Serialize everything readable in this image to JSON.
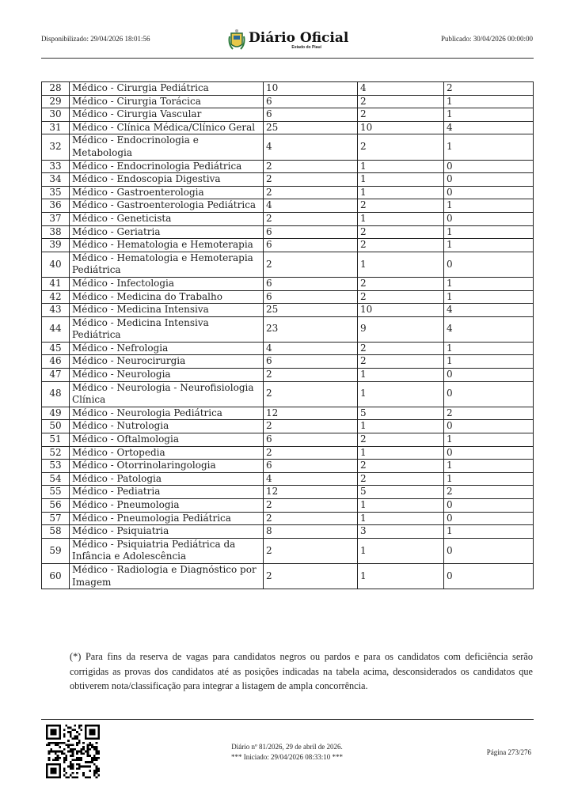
{
  "header": {
    "available": "Disponibilizado: 29/04/2026 18:01:56",
    "logo_title": "Diário Oficial",
    "logo_subtitle": "Estado do Piauí",
    "published": "Publicado: 30/04/2026 00:00:00"
  },
  "table": {
    "rows": [
      [
        "28",
        "Médico - Cirurgia Pediátrica",
        "10",
        "4",
        "2"
      ],
      [
        "29",
        "Médico - Cirurgia Torácica",
        "6",
        "2",
        "1"
      ],
      [
        "30",
        "Médico - Cirurgia Vascular",
        "6",
        "2",
        "1"
      ],
      [
        "31",
        "Médico - Clínica Médica/Clínico Geral",
        "25",
        "10",
        "4"
      ],
      [
        "32",
        "Médico - Endocrinologia e Metabologia",
        "4",
        "2",
        "1"
      ],
      [
        "33",
        "Médico - Endocrinologia Pediátrica",
        "2",
        "1",
        "0"
      ],
      [
        "34",
        "Médico - Endoscopia Digestiva",
        "2",
        "1",
        "0"
      ],
      [
        "35",
        "Médico - Gastroenterologia",
        "2",
        "1",
        "0"
      ],
      [
        "36",
        "Médico - Gastroenterologia Pediátrica",
        "4",
        "2",
        "1"
      ],
      [
        "37",
        "Médico - Geneticista",
        "2",
        "1",
        "0"
      ],
      [
        "38",
        "Médico - Geriatria",
        "6",
        "2",
        "1"
      ],
      [
        "39",
        "Médico - Hematologia e Hemoterapia",
        "6",
        "2",
        "1"
      ],
      [
        "40",
        "Médico - Hematologia e Hemoterapia Pediátrica",
        "2",
        "1",
        "0"
      ],
      [
        "41",
        "Médico - Infectologia",
        "6",
        "2",
        "1"
      ],
      [
        "42",
        "Médico - Medicina do Trabalho",
        "6",
        "2",
        "1"
      ],
      [
        "43",
        "Médico - Medicina Intensiva",
        "25",
        "10",
        "4"
      ],
      [
        "44",
        "Médico - Medicina Intensiva Pediátrica",
        "23",
        "9",
        "4"
      ],
      [
        "45",
        "Médico - Nefrologia",
        "4",
        "2",
        "1"
      ],
      [
        "46",
        "Médico - Neurocirurgia",
        "6",
        "2",
        "1"
      ],
      [
        "47",
        "Médico - Neurologia",
        "2",
        "1",
        "0"
      ],
      [
        "48",
        "Médico - Neurologia - Neurofisiologia Clínica",
        "2",
        "1",
        "0"
      ],
      [
        "49",
        "Médico - Neurologia Pediátrica",
        "12",
        "5",
        "2"
      ],
      [
        "50",
        "Médico - Nutrologia",
        "2",
        "1",
        "0"
      ],
      [
        "51",
        "Médico - Oftalmologia",
        "6",
        "2",
        "1"
      ],
      [
        "52",
        "Médico - Ortopedia",
        "2",
        "1",
        "0"
      ],
      [
        "53",
        "Médico - Otorrinolaringologia",
        "6",
        "2",
        "1"
      ],
      [
        "54",
        "Médico - Patologia",
        "4",
        "2",
        "1"
      ],
      [
        "55",
        "Médico - Pediatria",
        "12",
        "5",
        "2"
      ],
      [
        "56",
        "Médico - Pneumologia",
        "2",
        "1",
        "0"
      ],
      [
        "57",
        "Médico - Pneumologia Pediátrica",
        "2",
        "1",
        "0"
      ],
      [
        "58",
        "Médico - Psiquiatria",
        "8",
        "3",
        "1"
      ],
      [
        "59",
        "Médico - Psiquiatria Pediátrica da Infância e Adolescência",
        "2",
        "1",
        "0"
      ],
      [
        "60",
        "Médico - Radiologia e Diagnóstico por Imagem",
        "2",
        "1",
        "0"
      ]
    ]
  },
  "note": "(*) Para fins da reserva de vagas para candidatos negros ou pardos e para os candidatos com deficiência serão corrigidas as provas dos candidatos até as posições indicadas na tabela acima, desconsiderados os candidatos que obtiverem nota/classificação para integrar a listagem de ampla concorrência.",
  "footer": {
    "edition": "Diário nº 81/2026, 29 de abril de 2026.",
    "started": "*** Iniciado: 29/04/2026 08:33:10 ***",
    "page": "Página 273/276"
  }
}
